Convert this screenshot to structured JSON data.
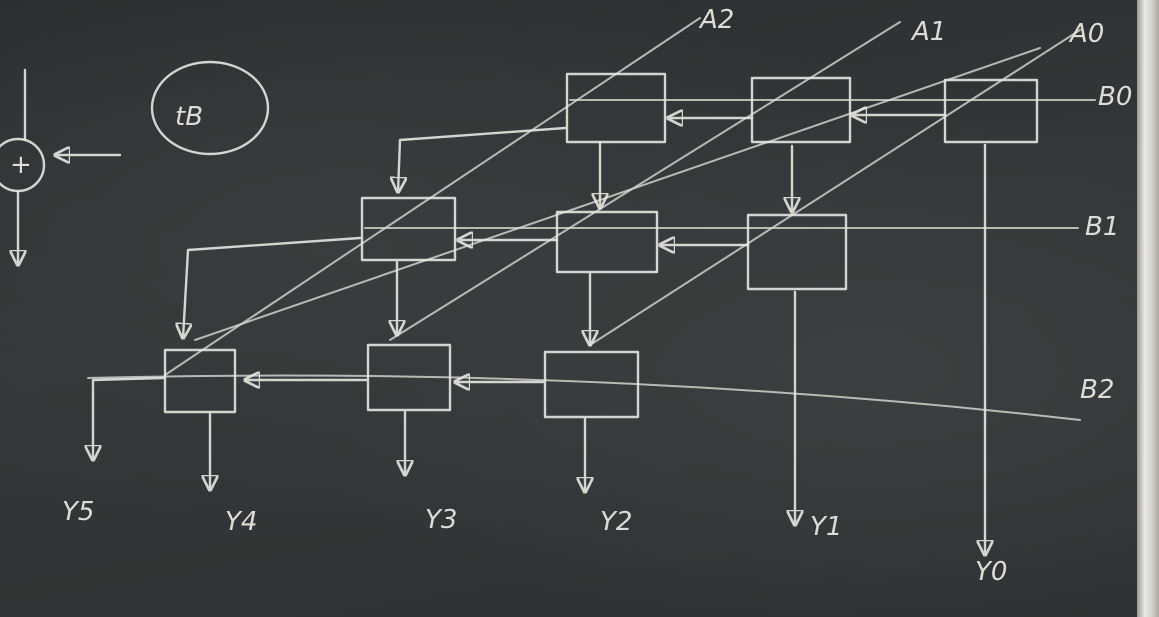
{
  "title": "tB",
  "adder_symbol": "+",
  "inputs": {
    "A": [
      "A2",
      "A1",
      "A0"
    ],
    "B": [
      "B0",
      "B1",
      "B2"
    ]
  },
  "outputs": [
    "Y5",
    "Y4",
    "Y3",
    "Y2",
    "Y1",
    "Y0"
  ],
  "colors": {
    "board": "#2e3031",
    "chalk": "#e6e6e2"
  }
}
